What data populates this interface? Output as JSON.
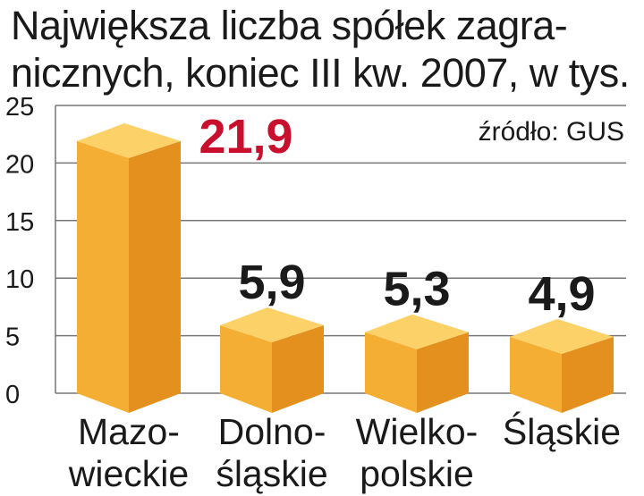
{
  "title": {
    "line1": "Największa liczba spółek zagra-",
    "line2": "nicznych, koniec III kw. 2007, w tys."
  },
  "source": "źródło: GUS",
  "colors": {
    "bar_front": "#f5ae34",
    "bar_side": "#e3901f",
    "bar_top": "#fcd168",
    "highlight_label": "#c8102e",
    "label": "#1a1a1a",
    "grid": "#777777"
  },
  "chart_data": {
    "type": "bar",
    "categories": [
      [
        "Mazo-",
        "wieckie"
      ],
      [
        "Dolno-",
        "śląskie"
      ],
      [
        "Wielko-",
        "polskie"
      ],
      [
        "Śląskie"
      ]
    ],
    "values": [
      21.9,
      5.9,
      5.3,
      4.9
    ],
    "value_labels": [
      "21,9",
      "5,9",
      "5,3",
      "4,9"
    ],
    "ylim": [
      0,
      25
    ],
    "yticks": [
      0,
      5,
      10,
      15,
      20,
      25
    ],
    "grid": true,
    "highlight_index": 0
  }
}
